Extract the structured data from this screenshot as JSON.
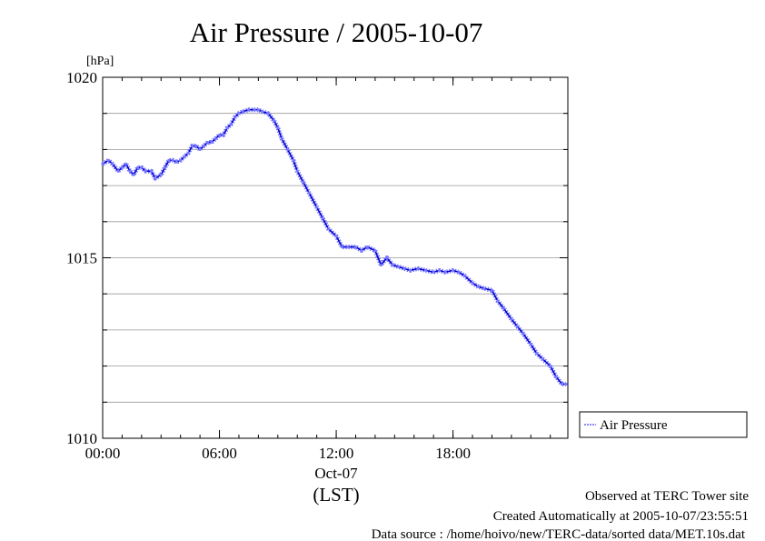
{
  "chart_data": {
    "type": "line",
    "title": "Air Pressure / 2005-10-07",
    "ylabel": "[hPa]",
    "xlabel": "(LST)",
    "date_label": "Oct-07",
    "xlim": [
      0,
      23.9
    ],
    "ylim": [
      1010,
      1020
    ],
    "yticks": [
      1010,
      1015,
      1020
    ],
    "yminor": [
      1011,
      1012,
      1013,
      1014,
      1016,
      1017,
      1018,
      1019
    ],
    "xticks": [
      {
        "value": 0,
        "label": "00:00"
      },
      {
        "value": 6,
        "label": "06:00"
      },
      {
        "value": 12,
        "label": "12:00"
      },
      {
        "value": 18,
        "label": "18:00"
      }
    ],
    "grid": true,
    "legend_position": "right",
    "series": [
      {
        "name": "Air Pressure",
        "color": "#0000cc",
        "marker_color": "#7777ff",
        "x": [
          0.0,
          0.3,
          0.5,
          0.8,
          1.0,
          1.2,
          1.4,
          1.6,
          1.8,
          2.0,
          2.2,
          2.5,
          2.7,
          3.0,
          3.2,
          3.4,
          3.6,
          3.8,
          4.0,
          4.2,
          4.4,
          4.6,
          4.8,
          5.0,
          5.2,
          5.4,
          5.6,
          5.8,
          6.0,
          6.2,
          6.4,
          6.6,
          6.8,
          7.0,
          7.2,
          7.5,
          7.8,
          8.0,
          8.2,
          8.5,
          8.8,
          9.0,
          9.2,
          9.5,
          9.8,
          10.0,
          10.3,
          10.6,
          11.0,
          11.3,
          11.6,
          12.0,
          12.3,
          12.6,
          13.0,
          13.3,
          13.6,
          14.0,
          14.3,
          14.6,
          14.9,
          15.2,
          15.5,
          15.8,
          16.2,
          16.6,
          17.0,
          17.3,
          17.6,
          18.0,
          18.3,
          18.6,
          19.0,
          19.3,
          19.6,
          20.0,
          20.3,
          20.6,
          21.0,
          21.3,
          21.6,
          22.0,
          22.3,
          22.6,
          23.0,
          23.3,
          23.6,
          23.8
        ],
        "values": [
          1017.6,
          1017.7,
          1017.6,
          1017.4,
          1017.5,
          1017.6,
          1017.4,
          1017.3,
          1017.5,
          1017.5,
          1017.4,
          1017.4,
          1017.2,
          1017.3,
          1017.5,
          1017.7,
          1017.7,
          1017.65,
          1017.7,
          1017.8,
          1017.9,
          1018.1,
          1018.1,
          1018.0,
          1018.1,
          1018.2,
          1018.2,
          1018.3,
          1018.4,
          1018.4,
          1018.6,
          1018.7,
          1018.9,
          1019.0,
          1019.05,
          1019.1,
          1019.1,
          1019.1,
          1019.05,
          1019.0,
          1018.8,
          1018.6,
          1018.3,
          1018.0,
          1017.7,
          1017.4,
          1017.1,
          1016.8,
          1016.4,
          1016.1,
          1015.8,
          1015.6,
          1015.3,
          1015.3,
          1015.3,
          1015.2,
          1015.3,
          1015.2,
          1014.8,
          1015.0,
          1014.8,
          1014.75,
          1014.7,
          1014.65,
          1014.7,
          1014.65,
          1014.6,
          1014.65,
          1014.6,
          1014.65,
          1014.6,
          1014.5,
          1014.3,
          1014.2,
          1014.15,
          1014.1,
          1013.8,
          1013.6,
          1013.3,
          1013.1,
          1012.9,
          1012.6,
          1012.35,
          1012.2,
          1012.0,
          1011.7,
          1011.5,
          1011.5
        ]
      }
    ]
  },
  "footer": {
    "line1": "Observed at TERC Tower site",
    "line2": "Created Automatically at 2005-10-07/23:55:51",
    "line3": "Data source : /home/hoivo/new/TERC-data/sorted  data/MET.10s.dat"
  }
}
